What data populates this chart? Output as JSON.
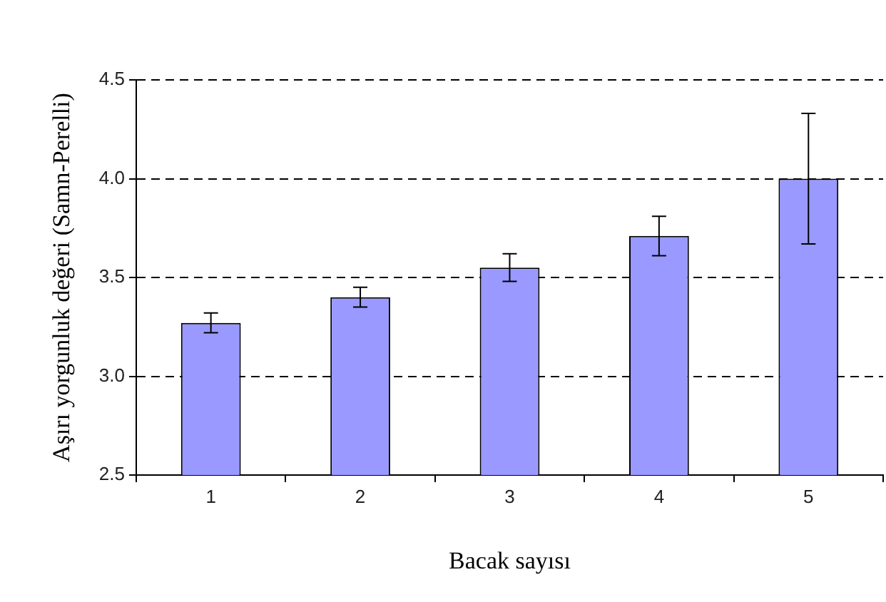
{
  "chart_data": {
    "type": "bar",
    "xlabel": "Bacak sayısı",
    "ylabel": "Aşırı yorgunluk değeri (Samn-Perelli)",
    "categories": [
      "1",
      "2",
      "3",
      "4",
      "5"
    ],
    "values": [
      3.27,
      3.4,
      3.55,
      3.71,
      4.0
    ],
    "errors": [
      0.05,
      0.05,
      0.07,
      0.1,
      0.33
    ],
    "color": "#9999ff",
    "ylim": [
      2.5,
      4.5
    ],
    "yticks": [
      2.5,
      {
        "value": 3,
        "label": "3.0"
      },
      3.5,
      {
        "value": 4,
        "label": "4.0"
      },
      4.5
    ],
    "grid": "y",
    "legend": false
  }
}
